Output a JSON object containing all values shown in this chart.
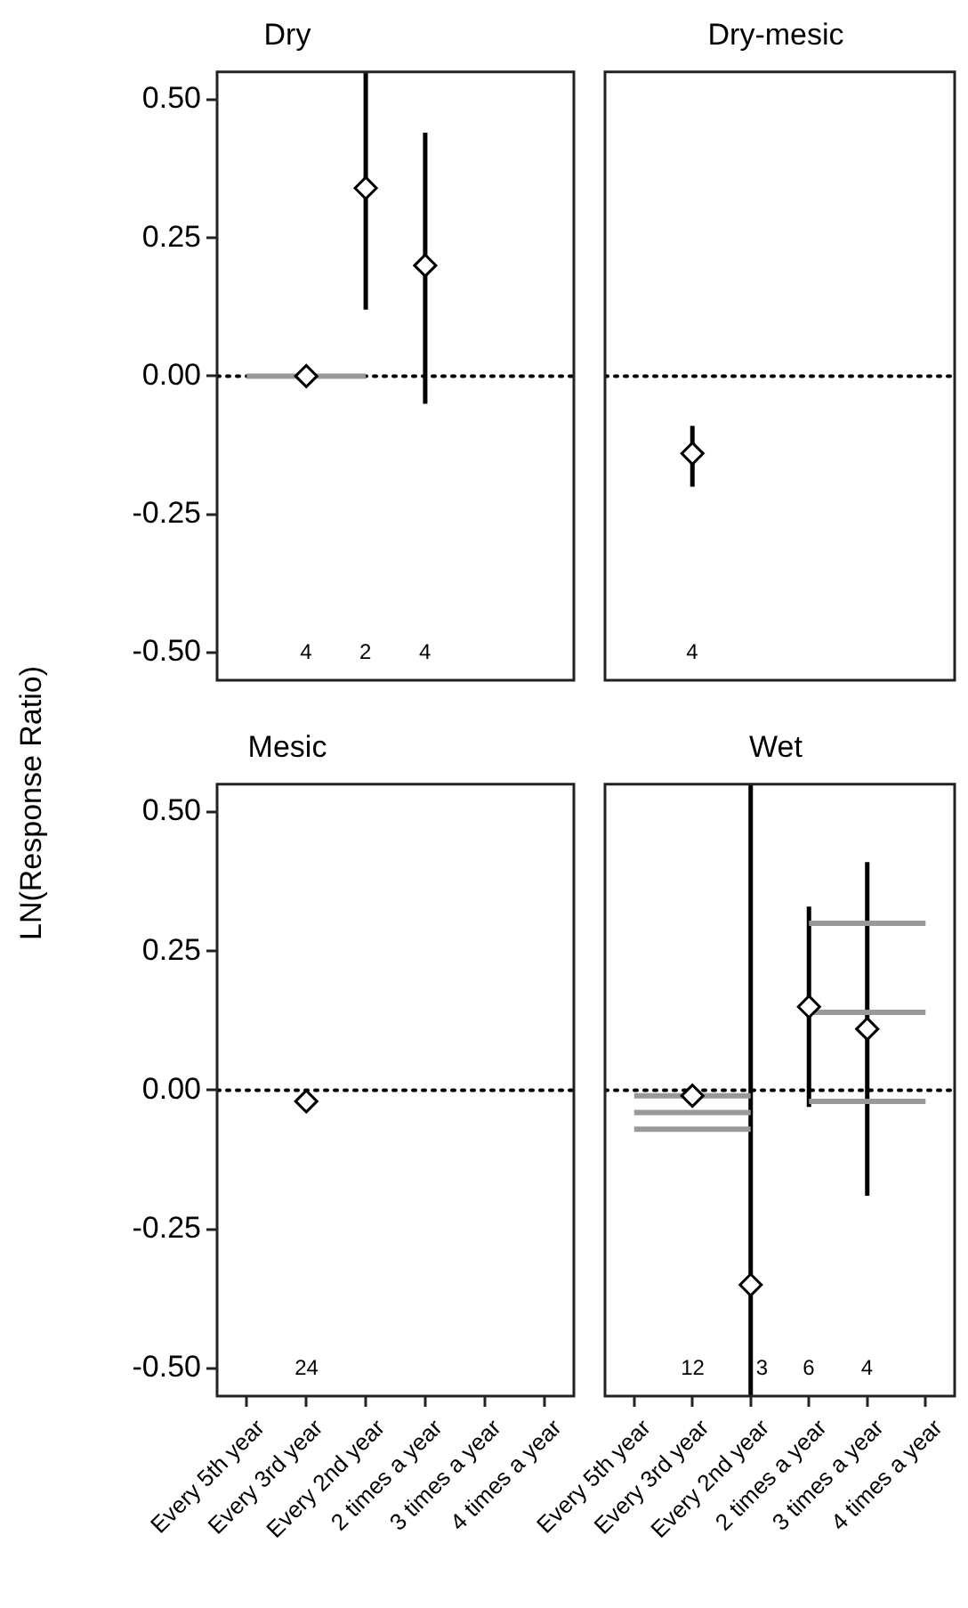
{
  "chart_data": [
    {
      "type": "scatter",
      "title": "Dry",
      "ylabel": "LN(Response Ratio)",
      "categories": [
        "Every 5th year",
        "Every 3rd year",
        "Every 2nd year",
        "2 times a year",
        "3 times a year",
        "4 times a year"
      ],
      "ylim": [
        -0.55,
        0.55
      ],
      "yticks": [
        {
          "value": 0.5,
          "label": "0.50"
        },
        {
          "value": 0.25,
          "label": "0.25"
        },
        {
          "value": 0,
          "label": "0.00"
        },
        {
          "value": -0.25,
          "label": "-0.25"
        },
        {
          "value": -0.5,
          "label": "-0.50"
        }
      ],
      "tick_labels": "y",
      "grid": false,
      "legend": false,
      "ref_lines": [
        {
          "axis": "y",
          "value": 0,
          "line_style": "dotted",
          "color": "#000000"
        }
      ],
      "series": [
        {
          "type": "line",
          "color": "#999999",
          "x": [
            "Every 5th year",
            "Every 2nd year"
          ],
          "values": [
            0.0,
            0.0
          ]
        },
        {
          "type": "scatter",
          "marker": "diamond",
          "color": "#000000",
          "values": [
            null,
            0.0,
            0.34,
            0.2,
            null,
            null
          ],
          "errors": [
            null,
            null,
            [
              0.12,
              0.55
            ],
            [
              -0.05,
              0.44
            ],
            null,
            null
          ]
        }
      ],
      "annotations": [
        "4",
        "2",
        "4"
      ]
    },
    {
      "type": "scatter",
      "title": "Dry-mesic",
      "categories": [
        "Every 5th year",
        "Every 3rd year",
        "Every 2nd year",
        "2 times a year",
        "3 times a year",
        "4 times a year"
      ],
      "ylim": [
        -0.55,
        0.55
      ],
      "yticks": [
        {
          "value": 0.5,
          "label": "0.50"
        },
        {
          "value": 0.25,
          "label": "0.25"
        },
        {
          "value": 0,
          "label": "0.00"
        },
        {
          "value": -0.25,
          "label": "-0.25"
        },
        {
          "value": -0.5,
          "label": "-0.50"
        }
      ],
      "tick_labels": false,
      "grid": false,
      "legend": false,
      "ref_lines": [
        {
          "axis": "y",
          "value": 0,
          "line_style": "dotted",
          "color": "#000000"
        }
      ],
      "series": [
        {
          "type": "scatter",
          "marker": "diamond",
          "color": "#000000",
          "values": [
            null,
            -0.14,
            null,
            null,
            null,
            null
          ],
          "errors": [
            null,
            [
              -0.2,
              -0.09
            ],
            null,
            null,
            null,
            null
          ]
        }
      ],
      "annotations": [
        "4"
      ]
    },
    {
      "type": "scatter",
      "title": "Mesic",
      "categories": [
        "Every 5th year",
        "Every 3rd year",
        "Every 2nd year",
        "2 times a year",
        "3 times a year",
        "4 times a year"
      ],
      "ylim": [
        -0.55,
        0.55
      ],
      "yticks": [
        {
          "value": 0.5,
          "label": "0.50"
        },
        {
          "value": 0.25,
          "label": "0.25"
        },
        {
          "value": 0,
          "label": "0.00"
        },
        {
          "value": -0.25,
          "label": "-0.25"
        },
        {
          "value": -0.5,
          "label": "-0.50"
        }
      ],
      "grid": false,
      "legend": false,
      "ref_lines": [
        {
          "axis": "y",
          "value": 0,
          "line_style": "dotted",
          "color": "#000000"
        }
      ],
      "series": [
        {
          "type": "scatter",
          "marker": "diamond",
          "color": "#000000",
          "values": [
            null,
            -0.02,
            null,
            null,
            null,
            null
          ]
        }
      ],
      "annotations": [
        "24"
      ]
    },
    {
      "type": "scatter",
      "title": "Wet",
      "categories": [
        "Every 5th year",
        "Every 3rd year",
        "Every 2nd year",
        "2 times a year",
        "3 times a year",
        "4 times a year"
      ],
      "ylim": [
        -0.55,
        0.55
      ],
      "yticks": [
        {
          "value": 0.5,
          "label": "0.50"
        },
        {
          "value": 0.25,
          "label": "0.25"
        },
        {
          "value": 0,
          "label": "0.00"
        },
        {
          "value": -0.25,
          "label": "-0.25"
        },
        {
          "value": -0.5,
          "label": "-0.50"
        }
      ],
      "tick_labels": "x",
      "grid": false,
      "legend": false,
      "ref_lines": [
        {
          "axis": "y",
          "value": 0,
          "line_style": "dotted",
          "color": "#000000"
        }
      ],
      "series": [
        {
          "type": "line",
          "color": "#999999",
          "x": [
            "Every 5th year",
            "Every 2nd year"
          ],
          "values": [
            -0.01,
            -0.01
          ]
        },
        {
          "type": "line",
          "color": "#999999",
          "x": [
            "Every 5th year",
            "Every 2nd year"
          ],
          "values": [
            -0.04,
            -0.04
          ]
        },
        {
          "type": "line",
          "color": "#999999",
          "x": [
            "Every 5th year",
            "Every 2nd year"
          ],
          "values": [
            -0.07,
            -0.07
          ]
        },
        {
          "type": "line",
          "color": "#999999",
          "x": [
            "2 times a year",
            "4 times a year"
          ],
          "values": [
            0.3,
            0.3
          ]
        },
        {
          "type": "line",
          "color": "#999999",
          "x": [
            "2 times a year",
            "4 times a year"
          ],
          "values": [
            0.14,
            0.14
          ]
        },
        {
          "type": "line",
          "color": "#999999",
          "x": [
            "2 times a year",
            "4 times a year"
          ],
          "values": [
            -0.02,
            -0.02
          ]
        },
        {
          "type": "scatter",
          "marker": "diamond",
          "color": "#000000",
          "values": [
            null,
            -0.01,
            -0.35,
            0.15,
            0.11,
            null
          ],
          "errors": [
            null,
            null,
            [
              -0.55,
              0.55
            ],
            [
              -0.03,
              0.33
            ],
            [
              -0.19,
              0.41
            ],
            null
          ]
        }
      ],
      "annotations": [
        "12",
        "3",
        "6",
        "4"
      ]
    }
  ]
}
